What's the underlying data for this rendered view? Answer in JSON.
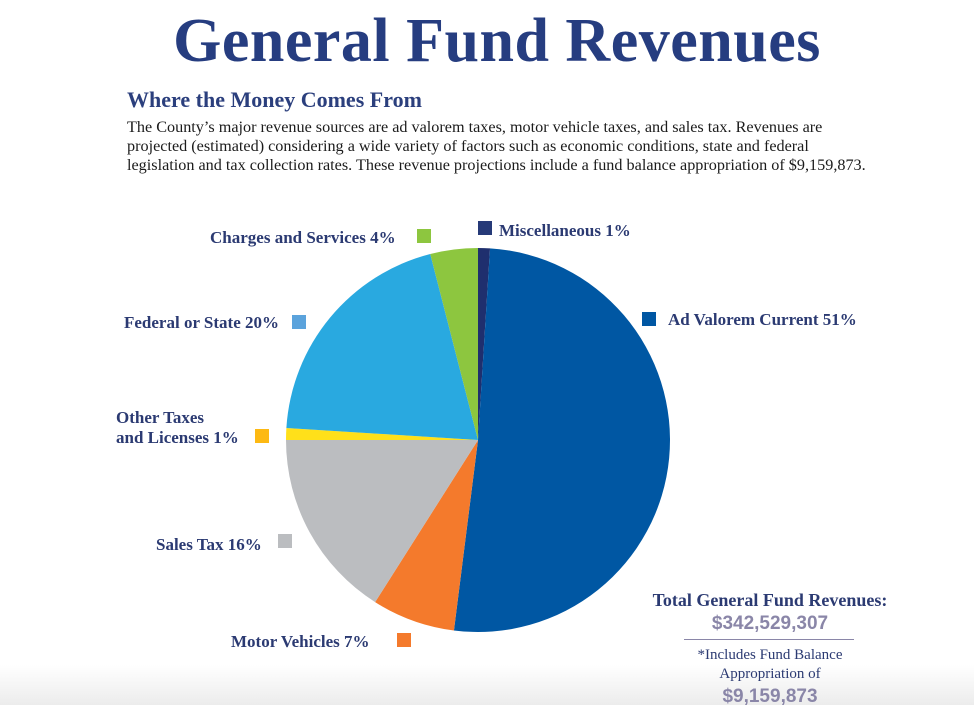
{
  "title": "General Fund Revenues",
  "subtitle": "Where the Money Comes From",
  "description": "The County’s major revenue sources are ad valorem taxes, motor vehicle taxes, and sales tax. Revenues are projected (estimated) considering a wide variety of factors such as economic conditions, state and federal legislation and tax collection rates. These revenue projections include a fund balance appropriation of $9,159,873.",
  "chart_data": {
    "type": "pie",
    "start": "12 o'clock, clockwise",
    "slices": [
      {
        "label": "Miscellaneous 1%",
        "name": "Miscellaneous",
        "value": 1,
        "color": "#1f2f6e",
        "legend_color": "#263a78"
      },
      {
        "label": "Ad Valorem Current 51%",
        "name": "Ad Valorem Current",
        "value": 51,
        "color": "#0057a3",
        "legend_color": "#0057a3"
      },
      {
        "label": "Motor Vehicles 7%",
        "name": "Motor Vehicles",
        "value": 7,
        "color": "#f47a2c",
        "legend_color": "#f47a2c"
      },
      {
        "label": "Sales Tax 16%",
        "name": "Sales Tax",
        "value": 16,
        "color": "#bbbdc0",
        "legend_color": "#bbbdc0"
      },
      {
        "label": "Other Taxes and Licenses 1%",
        "label_lines": [
          "Other Taxes",
          "and Licenses 1%"
        ],
        "name": "Other Taxes and Licenses",
        "value": 1,
        "color": "#ffe01a",
        "legend_color": "#fdb913"
      },
      {
        "label": "Federal or State 20%",
        "name": "Federal or State",
        "value": 20,
        "color": "#29a9e0",
        "legend_color": "#5ba3dc"
      },
      {
        "label": "Charges and Services 4%",
        "name": "Charges and Services",
        "value": 4,
        "color": "#8dc63f",
        "legend_color": "#8dc63f"
      }
    ]
  },
  "total": {
    "label": "Total General Fund Revenues:",
    "amount": "$342,529,307",
    "note_line1": "*Includes Fund Balance",
    "note_line2": "Appropriation of",
    "note_amount": "$9,159,873"
  }
}
